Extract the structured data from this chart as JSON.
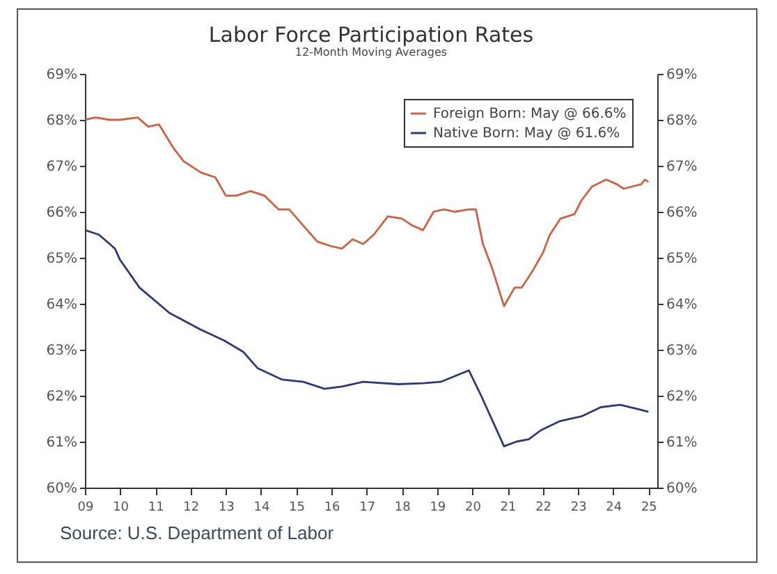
{
  "chart_data": {
    "type": "line",
    "title": "Labor Force Participation Rates",
    "subtitle": "12-Month Moving Averages",
    "annotations": [
      "Source: U.S. Department of Labor"
    ],
    "xlim": [
      2009,
      2025.25
    ],
    "xticks": [
      {
        "value": 2009,
        "label": "09"
      },
      {
        "value": 2010,
        "label": "10"
      },
      {
        "value": 2011,
        "label": "11"
      },
      {
        "value": 2012,
        "label": "12"
      },
      {
        "value": 2013,
        "label": "13"
      },
      {
        "value": 2014,
        "label": "14"
      },
      {
        "value": 2015,
        "label": "15"
      },
      {
        "value": 2016,
        "label": "16"
      },
      {
        "value": 2017,
        "label": "17"
      },
      {
        "value": 2018,
        "label": "18"
      },
      {
        "value": 2019,
        "label": "19"
      },
      {
        "value": 2020,
        "label": "20"
      },
      {
        "value": 2021,
        "label": "21"
      },
      {
        "value": 2022,
        "label": "22"
      },
      {
        "value": 2023,
        "label": "23"
      },
      {
        "value": 2024,
        "label": "24"
      },
      {
        "value": 2025,
        "label": "25"
      }
    ],
    "ylim": [
      60,
      69
    ],
    "yticks": [
      {
        "value": 60,
        "label": "60%"
      },
      {
        "value": 61,
        "label": "61%"
      },
      {
        "value": 62,
        "label": "62%"
      },
      {
        "value": 63,
        "label": "63%"
      },
      {
        "value": 64,
        "label": "64%"
      },
      {
        "value": 65,
        "label": "65%"
      },
      {
        "value": 66,
        "label": "66%"
      },
      {
        "value": 67,
        "label": "67%"
      },
      {
        "value": 68,
        "label": "68%"
      },
      {
        "value": 69,
        "label": "69%"
      }
    ],
    "y2lim": [
      60,
      69
    ],
    "y2ticks": [
      {
        "value": 60,
        "label": "60%"
      },
      {
        "value": 61,
        "label": "61%"
      },
      {
        "value": 62,
        "label": "62%"
      },
      {
        "value": 63,
        "label": "63%"
      },
      {
        "value": 64,
        "label": "64%"
      },
      {
        "value": 65,
        "label": "65%"
      },
      {
        "value": 66,
        "label": "66%"
      },
      {
        "value": 67,
        "label": "67%"
      },
      {
        "value": 68,
        "label": "68%"
      },
      {
        "value": 69,
        "label": "69%"
      }
    ],
    "legend": "top right",
    "grid": false,
    "line_style": "solid",
    "marker": "none",
    "series": [
      {
        "name": "Foreign Born: May @ 66.6%",
        "color": "#cf6040",
        "x": [
          2009.0,
          2009.3,
          2009.7,
          2010.0,
          2010.5,
          2010.8,
          2011.1,
          2011.5,
          2011.8,
          2012.3,
          2012.7,
          2013.0,
          2013.3,
          2013.7,
          2014.1,
          2014.5,
          2014.8,
          2015.2,
          2015.6,
          2016.0,
          2016.3,
          2016.6,
          2016.9,
          2017.2,
          2017.6,
          2018.0,
          2018.3,
          2018.6,
          2018.9,
          2019.2,
          2019.5,
          2019.9,
          2020.1,
          2020.3,
          2020.55,
          2020.9,
          2021.2,
          2021.4,
          2021.7,
          2022.0,
          2022.2,
          2022.5,
          2022.9,
          2023.1,
          2023.4,
          2023.8,
          2024.1,
          2024.3,
          2024.8,
          2024.9,
          2025.0
        ],
        "values": [
          68.0,
          68.05,
          68.0,
          68.0,
          68.05,
          67.85,
          67.9,
          67.4,
          67.1,
          66.85,
          66.75,
          66.35,
          66.35,
          66.45,
          66.35,
          66.05,
          66.05,
          65.7,
          65.35,
          65.25,
          65.2,
          65.4,
          65.3,
          65.5,
          65.9,
          65.85,
          65.7,
          65.6,
          66.0,
          66.05,
          66.0,
          66.05,
          66.05,
          65.3,
          64.8,
          63.95,
          64.35,
          64.35,
          64.7,
          65.1,
          65.5,
          65.85,
          65.95,
          66.25,
          66.55,
          66.7,
          66.6,
          66.5,
          66.6,
          66.7,
          66.65
        ]
      },
      {
        "name": "Native Born: May @ 61.6%",
        "color": "#2e3a78",
        "x": [
          2009.0,
          2009.4,
          2009.85,
          2010.0,
          2010.55,
          2011.4,
          2012.25,
          2012.95,
          2013.5,
          2013.9,
          2014.6,
          2015.2,
          2015.8,
          2016.3,
          2016.9,
          2017.9,
          2018.6,
          2019.1,
          2019.9,
          2020.25,
          2020.9,
          2021.25,
          2021.6,
          2021.95,
          2022.5,
          2023.1,
          2023.65,
          2024.2,
          2024.75,
          2025.0
        ],
        "values": [
          65.6,
          65.5,
          65.2,
          64.95,
          64.35,
          63.8,
          63.45,
          63.2,
          62.95,
          62.6,
          62.35,
          62.3,
          62.15,
          62.2,
          62.3,
          62.25,
          62.27,
          62.3,
          62.55,
          62.0,
          60.9,
          61.0,
          61.05,
          61.25,
          61.45,
          61.55,
          61.75,
          61.8,
          61.7,
          61.65
        ]
      }
    ]
  }
}
